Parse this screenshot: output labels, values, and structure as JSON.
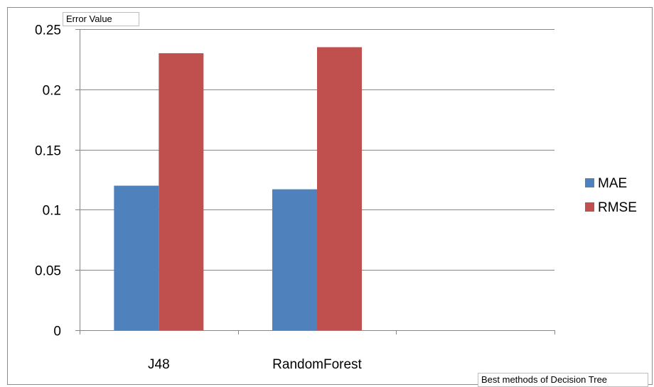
{
  "chart_data": {
    "type": "bar",
    "title": "",
    "ylabel": "Error Value",
    "xlabel": "Best methods of Decision Tree",
    "categories": [
      "J48",
      "RandomForest",
      ""
    ],
    "series": [
      {
        "name": "MAE",
        "values": [
          0.12,
          0.117,
          null
        ],
        "color": "#4f81bd"
      },
      {
        "name": "RMSE",
        "values": [
          0.23,
          0.235,
          null
        ],
        "color": "#c0504d"
      }
    ],
    "ylim": [
      0,
      0.25
    ],
    "yticks": [
      0,
      0.05,
      0.1,
      0.15,
      0.2,
      0.25
    ],
    "ytick_labels": [
      "0",
      "0.05",
      "0.1",
      "0.15",
      "0.2",
      "0.25"
    ],
    "grid": true,
    "legend_position": "right"
  }
}
